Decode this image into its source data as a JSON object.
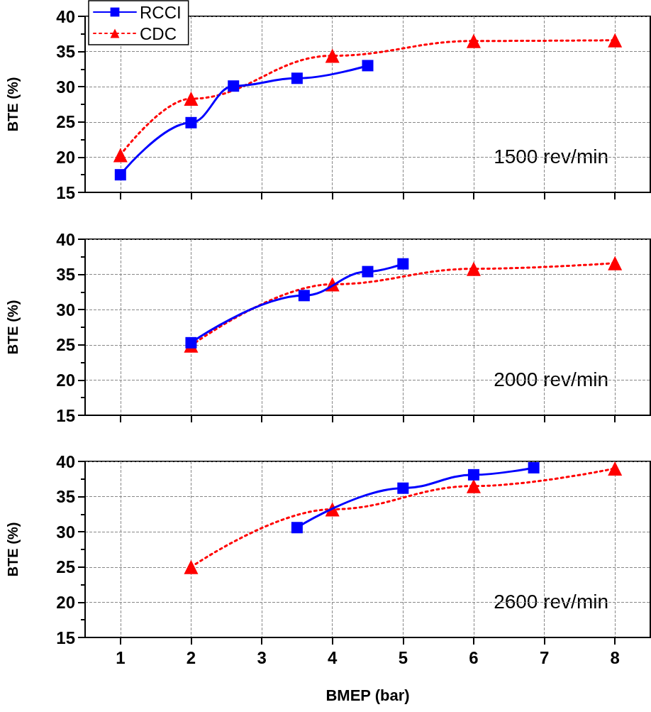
{
  "chart_data": [
    {
      "type": "line",
      "ylabel": "BTE (%)",
      "xlim": [
        0.5,
        8.5
      ],
      "xticks": [
        1,
        2,
        3,
        4,
        5,
        6,
        7,
        8
      ],
      "ylim": [
        15,
        40
      ],
      "yticks": [
        15,
        20,
        25,
        30,
        35,
        40
      ],
      "tick_labels": "y",
      "grid": true,
      "legend": "top left",
      "annotations": [
        "1500 rev/min"
      ],
      "series": [
        {
          "name": "RCCI",
          "color": "#0000ff",
          "marker": "square",
          "line_style": "solid",
          "x": [
            1,
            2,
            2.6,
            3.5,
            4.5
          ],
          "values": [
            17.5,
            24.9,
            30.1,
            31.2,
            33.0
          ]
        },
        {
          "name": "CDC",
          "color": "#ff0000",
          "marker": "triangle",
          "line_style": "dotted",
          "x": [
            1,
            2,
            4,
            6,
            8
          ],
          "values": [
            20.3,
            28.3,
            34.4,
            36.5,
            36.6
          ]
        }
      ]
    },
    {
      "type": "line",
      "ylabel": "BTE (%)",
      "xlim": [
        0.5,
        8.5
      ],
      "xticks": [
        1,
        2,
        3,
        4,
        5,
        6,
        7,
        8
      ],
      "ylim": [
        15,
        40
      ],
      "yticks": [
        15,
        20,
        25,
        30,
        35,
        40
      ],
      "tick_labels": "y",
      "grid": true,
      "annotations": [
        "2000 rev/min"
      ],
      "series": [
        {
          "color": "#0000ff",
          "marker": "square",
          "line_style": "solid",
          "x": [
            2,
            3.6,
            4.5,
            5
          ],
          "values": [
            25.3,
            32.0,
            35.4,
            36.5
          ]
        },
        {
          "color": "#ff0000",
          "marker": "triangle",
          "line_style": "dotted",
          "x": [
            2,
            4,
            6,
            8
          ],
          "values": [
            24.9,
            33.6,
            35.8,
            36.6
          ]
        }
      ]
    },
    {
      "type": "line",
      "xlabel": "BMEP (bar)",
      "ylabel": "BTE (%)",
      "xlim": [
        0.5,
        8.5
      ],
      "xticks": [
        1,
        2,
        3,
        4,
        5,
        6,
        7,
        8
      ],
      "ylim": [
        15,
        40
      ],
      "yticks": [
        15,
        20,
        25,
        30,
        35,
        40
      ],
      "grid": true,
      "annotations": [
        "2600 rev/min"
      ],
      "series": [
        {
          "color": "#0000ff",
          "marker": "square",
          "line_style": "solid",
          "x": [
            3.5,
            5,
            6,
            6.85
          ],
          "values": [
            30.6,
            36.2,
            38.1,
            39.1
          ]
        },
        {
          "color": "#ff0000",
          "marker": "triangle",
          "line_style": "dotted",
          "x": [
            2,
            4,
            6,
            8
          ],
          "values": [
            25.0,
            33.2,
            36.5,
            39.0
          ]
        }
      ]
    }
  ]
}
